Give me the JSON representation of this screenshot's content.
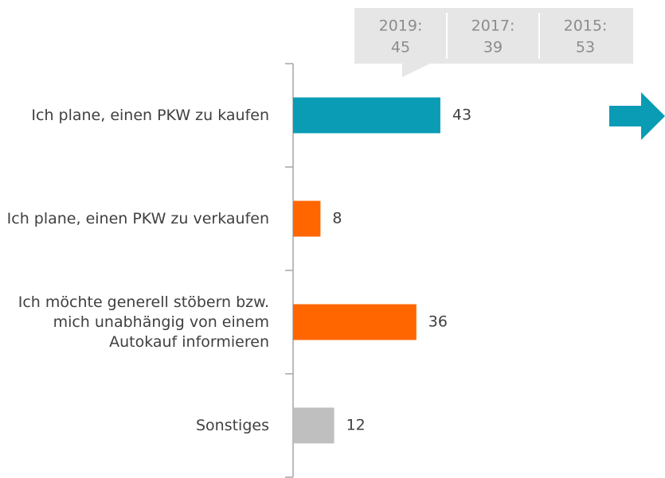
{
  "chart_data": {
    "type": "barh",
    "categories": [
      "Ich plane, einen PKW zu kaufen",
      "Ich plane, einen PKW zu verkaufen",
      "Ich möchte generell stöbern bzw. mich unabhängig von einem Autokauf informieren",
      "Sonstiges"
    ],
    "values": [
      43,
      8,
      36,
      12
    ],
    "colors": [
      "#0a9bb5",
      "#ff6600",
      "#ff6600",
      "#bfbfbf"
    ],
    "comparison": [
      {
        "year": "2019:",
        "value": 45
      },
      {
        "year": "2017:",
        "value": 39
      },
      {
        "year": "2015:",
        "value": 53
      }
    ]
  }
}
